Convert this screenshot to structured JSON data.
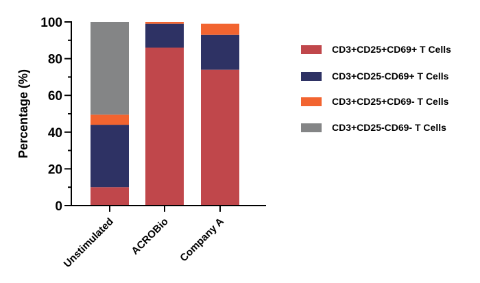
{
  "chart_data": {
    "type": "bar",
    "stacked": true,
    "categories": [
      "Unstimulated",
      "ACROBio",
      "Company A"
    ],
    "series": [
      {
        "name": "CD3+CD25+CD69+ T Cells",
        "color": "#c0474b",
        "values": [
          10,
          86,
          74
        ]
      },
      {
        "name": "CD3+CD25-CD69+ T Cells",
        "color": "#2e3264",
        "values": [
          34,
          13,
          19
        ]
      },
      {
        "name": "CD3+CD25+CD69- T Cells",
        "color": "#f26430",
        "values": [
          5.5,
          1,
          6
        ]
      },
      {
        "name": "CD3+CD25-CD69- T Cells",
        "color": "#848586",
        "values": [
          50.5,
          0,
          0
        ]
      }
    ],
    "ylabel": "Percentage (%)",
    "ylim": [
      0,
      100
    ],
    "yticks": [
      0,
      20,
      40,
      60,
      80,
      100
    ],
    "legend_position": "right",
    "grid": false
  }
}
